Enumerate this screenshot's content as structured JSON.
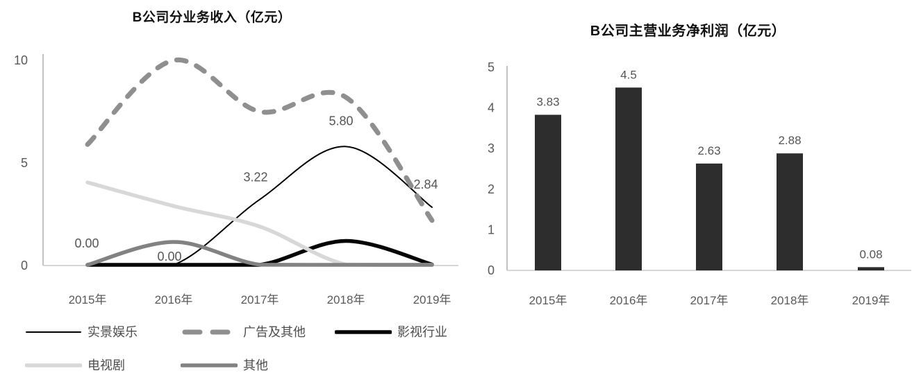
{
  "chart_data": [
    {
      "type": "line",
      "title": "B公司分业务收入（亿元）",
      "categories": [
        "2015年",
        "2016年",
        "2017年",
        "2018年",
        "2019年"
      ],
      "y_ticks": [
        "0",
        "5",
        "10"
      ],
      "y_tick_values": [
        0,
        5,
        10
      ],
      "ylim": [
        0,
        10
      ],
      "grid": "off",
      "legend_position": "bottom",
      "series": [
        {
          "name": "实景娱乐",
          "values": [
            0.0,
            0.0,
            3.22,
            5.8,
            2.84
          ],
          "color": "#000000",
          "stroke_width": 2,
          "dashed": false,
          "point_labels": [
            "0.00",
            "0.00",
            "3.22",
            "5.80",
            "2.84"
          ],
          "label_dx": [
            -1,
            -6,
            -6,
            -7,
            -9
          ],
          "label_dy": [
            -31,
            -12,
            -32,
            -37,
            -33
          ]
        },
        {
          "name": "广告及其他",
          "values": [
            5.9,
            10.0,
            7.5,
            8.2,
            2.2
          ],
          "color": "#8f8f8f",
          "stroke_width": 7,
          "dashed": true
        },
        {
          "name": "影视行业",
          "values": [
            0.02,
            0.02,
            0.03,
            1.2,
            0.05
          ],
          "color": "#050505",
          "stroke_width": 5.5,
          "dashed": false
        },
        {
          "name": "电视剧",
          "values": [
            4.05,
            2.9,
            1.9,
            0.05,
            0.0
          ],
          "color": "#d8d8d8",
          "stroke_width": 5.5,
          "dashed": false
        },
        {
          "name": "其他",
          "values": [
            0.02,
            1.15,
            0.04,
            0.03,
            0.03
          ],
          "color": "#828282",
          "stroke_width": 5.5,
          "dashed": false
        }
      ],
      "legend_rows": [
        [
          "实景娱乐",
          "广告及其他",
          "影视行业"
        ],
        [
          "电视剧",
          "其他"
        ]
      ]
    },
    {
      "type": "bar",
      "title": "B公司主营业务净利润（亿元）",
      "categories": [
        "2015年",
        "2016年",
        "2017年",
        "2018年",
        "2019年"
      ],
      "values": [
        3.83,
        4.5,
        2.63,
        2.88,
        0.08
      ],
      "bar_labels": [
        "3.83",
        "4.5",
        "2.63",
        "2.88",
        "0.08"
      ],
      "y_ticks": [
        "0",
        "1",
        "2",
        "3",
        "4",
        "5"
      ],
      "y_tick_values": [
        0,
        1,
        2,
        3,
        4,
        5
      ],
      "ylim": [
        0,
        5
      ],
      "grid": "off",
      "bar_color": "#2d2d2d"
    }
  ],
  "colors": {
    "axis_vertical": "#b3b3b3",
    "axis_horizontal": "#c9c9c9",
    "tick_text": "#595959",
    "data_label_text": "#555555",
    "legend_text": "#4d4d4d",
    "background": "#ffffff"
  }
}
